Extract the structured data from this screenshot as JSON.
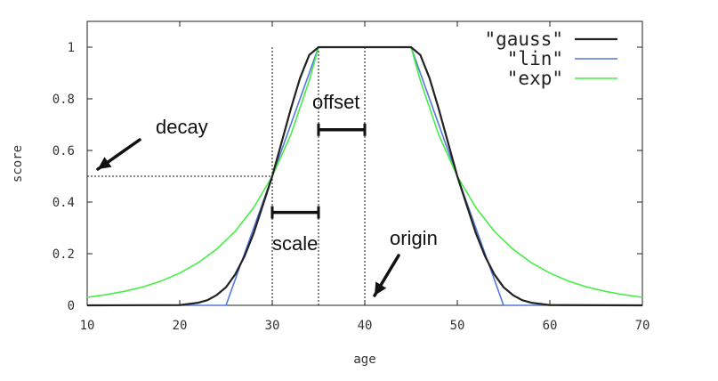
{
  "chart_data": {
    "type": "line",
    "title": "",
    "xlabel": "age",
    "ylabel": "score",
    "xlim": [
      10,
      70
    ],
    "ylim": [
      0,
      1.1
    ],
    "xticks": [
      10,
      20,
      30,
      40,
      50,
      60,
      70
    ],
    "yticks": [
      0,
      0.2,
      0.4,
      0.6,
      0.8,
      1
    ],
    "ytick_labels": [
      "0",
      "0.2",
      "0.4",
      "0.6",
      "0.8",
      "1"
    ],
    "grid": false,
    "legend_position": "top-right",
    "series": [
      {
        "name": "\"gauss\"",
        "color": "#222222",
        "x": [
          10,
          20,
          22,
          23,
          24,
          25,
          26,
          27,
          28,
          29,
          30,
          31,
          32,
          33,
          34,
          35,
          45,
          46,
          47,
          48,
          49,
          50,
          51,
          52,
          53,
          54,
          55,
          56,
          57,
          58,
          60,
          70
        ],
        "y": [
          0,
          0.001,
          0.01,
          0.02,
          0.04,
          0.07,
          0.12,
          0.19,
          0.28,
          0.39,
          0.5,
          0.63,
          0.76,
          0.88,
          0.97,
          1,
          1,
          0.97,
          0.88,
          0.76,
          0.63,
          0.5,
          0.39,
          0.28,
          0.19,
          0.12,
          0.07,
          0.04,
          0.02,
          0.01,
          0.001,
          0
        ]
      },
      {
        "name": "\"lin\"",
        "color": "#5577dd",
        "x": [
          10,
          25,
          35,
          45,
          55,
          70
        ],
        "y": [
          0,
          0,
          1,
          1,
          0,
          0
        ]
      },
      {
        "name": "\"exp\"",
        "color": "#44ee44",
        "x": [
          10,
          12,
          14,
          16,
          18,
          20,
          22,
          24,
          26,
          28,
          30,
          32,
          34,
          35,
          45,
          46,
          48,
          50,
          52,
          54,
          56,
          58,
          60,
          62,
          64,
          66,
          68,
          70
        ],
        "y": [
          0.031,
          0.041,
          0.054,
          0.071,
          0.094,
          0.125,
          0.165,
          0.218,
          0.287,
          0.379,
          0.5,
          0.66,
          0.871,
          1,
          1,
          0.871,
          0.66,
          0.5,
          0.379,
          0.287,
          0.218,
          0.165,
          0.125,
          0.094,
          0.071,
          0.054,
          0.041,
          0.031
        ]
      }
    ],
    "guides": {
      "decay_level": 0.5,
      "vlines": [
        30,
        35,
        40
      ]
    },
    "annotations": {
      "decay": {
        "text": "decay"
      },
      "offset": {
        "text": "offset",
        "from": 35,
        "to": 40,
        "at_y": 0.68
      },
      "scale": {
        "text": "scale",
        "from": 30,
        "to": 35,
        "at_y": 0.36
      },
      "origin": {
        "text": "origin"
      }
    }
  }
}
